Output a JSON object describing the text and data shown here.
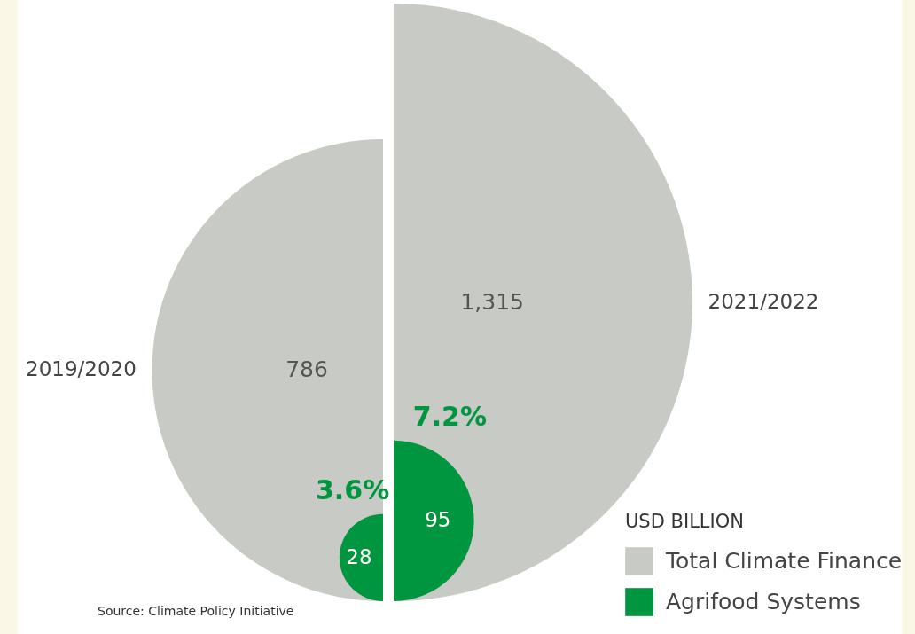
{
  "chart_data": {
    "type": "other",
    "categories": [
      "2019/2020",
      "2021/2022"
    ],
    "series": [
      {
        "name": "Total Climate Finance",
        "color": "#c8cac5",
        "values": [
          786,
          1315
        ],
        "value_labels": [
          "786",
          "1,315"
        ]
      },
      {
        "name": "Agrifood Systems",
        "color": "#00953f",
        "values": [
          28,
          95
        ],
        "value_labels": [
          "28",
          "95"
        ]
      }
    ],
    "legend": "bottom right",
    "legend_title": "USD BILLION",
    "annotations": [
      {
        "text": "3.6%",
        "x": "2019/2020"
      },
      {
        "text": "7.2%",
        "x": "2021/2022"
      },
      "Source: Climate Policy Initiative"
    ]
  }
}
